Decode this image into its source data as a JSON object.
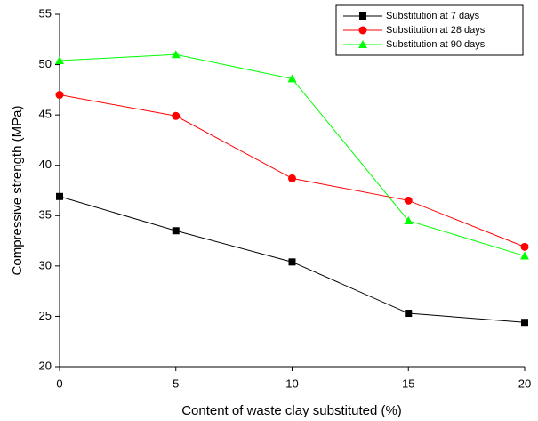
{
  "chart_data": {
    "type": "line",
    "x_label": "Content of waste clay substituted (%)",
    "y_label": "Compressive strength (MPa)",
    "x": [
      0,
      5,
      10,
      15,
      20
    ],
    "series": [
      {
        "name": "Substitution at 7 days",
        "color": "#000000",
        "marker": "square",
        "values": [
          36.9,
          33.5,
          30.4,
          25.3,
          24.4
        ]
      },
      {
        "name": "Substitution at 28 days",
        "color": "#ff0000",
        "marker": "circle",
        "values": [
          47.0,
          44.9,
          38.7,
          36.5,
          31.9
        ]
      },
      {
        "name": "Substitution at 90 days",
        "color": "#00ff00",
        "marker": "triangle",
        "values": [
          50.4,
          51.0,
          48.6,
          34.5,
          31.0
        ]
      }
    ],
    "xlim": [
      0,
      20
    ],
    "xticks": [
      0,
      5,
      10,
      15,
      20
    ],
    "ylim": [
      20,
      55
    ],
    "yticks": [
      20,
      25,
      30,
      35,
      40,
      45,
      50,
      55
    ],
    "legend": "upper right"
  }
}
